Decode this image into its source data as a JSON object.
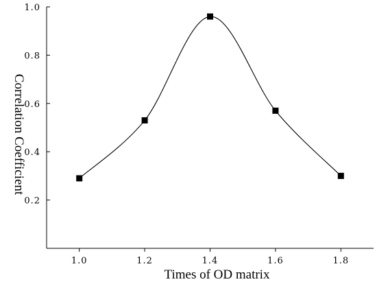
{
  "chart_data": {
    "type": "line",
    "x": [
      1.0,
      1.2,
      1.4,
      1.6,
      1.8
    ],
    "series": [
      {
        "values": [
          0.29,
          0.53,
          0.96,
          0.57,
          0.3
        ]
      }
    ],
    "xlabel": "Times of OD matrix",
    "ylabel": "Correlation Coefficient",
    "xlim": [
      0.9,
      1.9
    ],
    "ylim": [
      0.0,
      1.0
    ],
    "xticks": [
      1.0,
      1.2,
      1.4,
      1.6,
      1.8
    ],
    "xtick_labels": [
      "1.0",
      "1.2",
      "1.4",
      "1.6",
      "1.8"
    ],
    "yticks": [
      0.2,
      0.4,
      0.6,
      0.8,
      1.0
    ],
    "ytick_labels": [
      "0.2",
      "0.4",
      "0.6",
      "0.8",
      "1.0"
    ],
    "grid": false,
    "marker": "square",
    "line_style": "smooth"
  }
}
